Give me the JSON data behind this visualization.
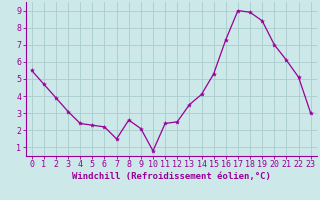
{
  "x": [
    0,
    1,
    2,
    3,
    4,
    5,
    6,
    7,
    8,
    9,
    10,
    11,
    12,
    13,
    14,
    15,
    16,
    17,
    18,
    19,
    20,
    21,
    22,
    23
  ],
  "y": [
    5.5,
    4.7,
    3.9,
    3.1,
    2.4,
    2.3,
    2.2,
    1.5,
    2.6,
    2.1,
    0.8,
    2.4,
    2.5,
    3.5,
    4.1,
    5.3,
    7.3,
    9.0,
    8.9,
    8.4,
    7.0,
    6.1,
    5.1,
    3.0
  ],
  "line_color": "#990099",
  "marker": "*",
  "marker_size": 3,
  "bg_color": "#cce8e8",
  "grid_color": "#aacccc",
  "xlabel": "Windchill (Refroidissement éolien,°C)",
  "xlabel_fontsize": 6.5,
  "tick_fontsize": 6.0,
  "xlim": [
    -0.5,
    23.5
  ],
  "ylim": [
    0.5,
    9.5
  ],
  "yticks": [
    1,
    2,
    3,
    4,
    5,
    6,
    7,
    8,
    9
  ],
  "xticks": [
    0,
    1,
    2,
    3,
    4,
    5,
    6,
    7,
    8,
    9,
    10,
    11,
    12,
    13,
    14,
    15,
    16,
    17,
    18,
    19,
    20,
    21,
    22,
    23
  ]
}
